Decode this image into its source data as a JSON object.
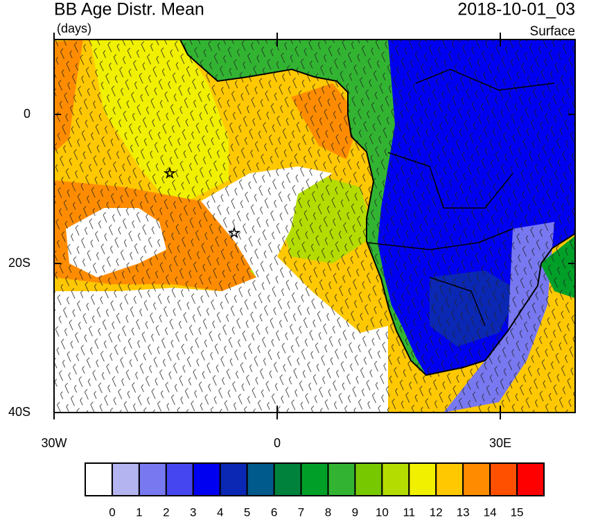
{
  "header": {
    "title": "BB Age Distr. Mean",
    "units": "(days)",
    "date": "2018-10-01_03",
    "level": "Surface"
  },
  "map": {
    "lat_labels": [
      "0",
      "20S",
      "40S"
    ],
    "lon_labels": [
      "30W",
      "0",
      "30E"
    ]
  },
  "colorbar": {
    "labels": [
      0,
      1,
      2,
      3,
      4,
      5,
      6,
      7,
      8,
      9,
      10,
      11,
      12,
      13,
      14,
      15
    ],
    "colors": [
      "#ffffff",
      "#b4b4f0",
      "#7878f0",
      "#4646f0",
      "#0000f0",
      "#0a28b4",
      "#005a8c",
      "#00823c",
      "#00a028",
      "#32b432",
      "#78c800",
      "#b4dc00",
      "#f0f000",
      "#ffc800",
      "#ff8c00",
      "#ff5000",
      "#ff0000"
    ]
  }
}
